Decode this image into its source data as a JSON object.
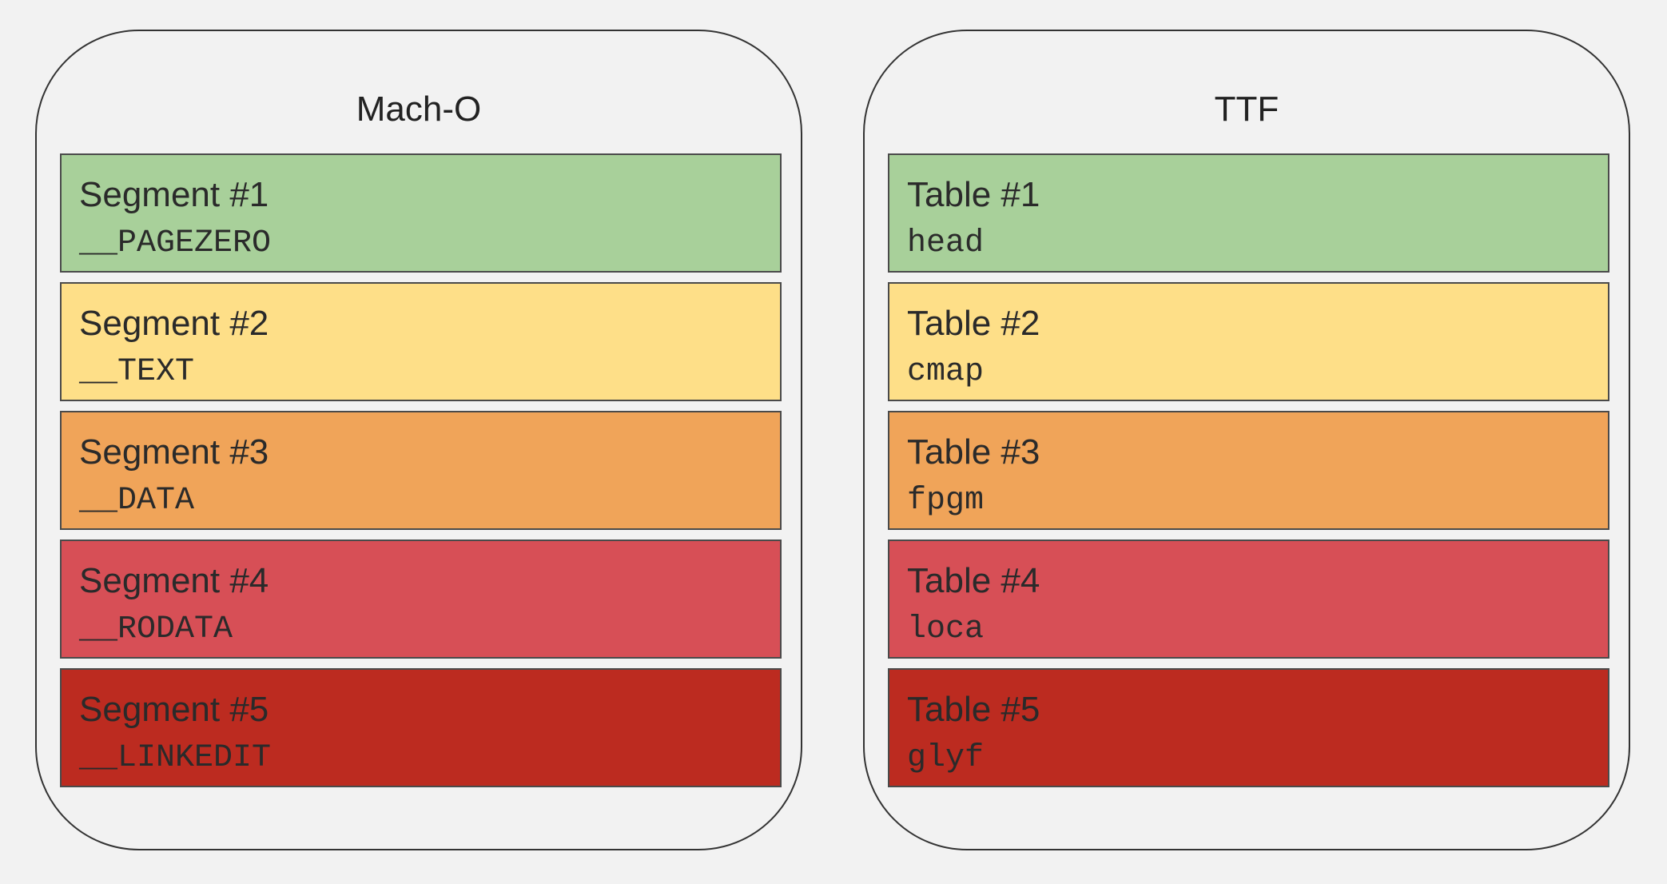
{
  "colors": {
    "background": "#f2f2f2",
    "block_1": "#a8d09a",
    "block_2": "#fedf88",
    "block_3": "#f0a459",
    "block_4": "#d74f56",
    "block_5": "#bc2b20"
  },
  "panels": [
    {
      "title": "Mach-O",
      "items": [
        {
          "label": "Segment #1",
          "name": "__PAGEZERO"
        },
        {
          "label": "Segment #2",
          "name": "__TEXT"
        },
        {
          "label": "Segment #3",
          "name": "__DATA"
        },
        {
          "label": "Segment #4",
          "name": "__RODATA"
        },
        {
          "label": "Segment #5",
          "name": "__LINKEDIT"
        }
      ]
    },
    {
      "title": "TTF",
      "items": [
        {
          "label": "Table #1",
          "name": "head"
        },
        {
          "label": "Table #2",
          "name": "cmap"
        },
        {
          "label": "Table #3",
          "name": "fpgm"
        },
        {
          "label": "Table #4",
          "name": "loca"
        },
        {
          "label": "Table #5",
          "name": "glyf"
        }
      ]
    }
  ]
}
